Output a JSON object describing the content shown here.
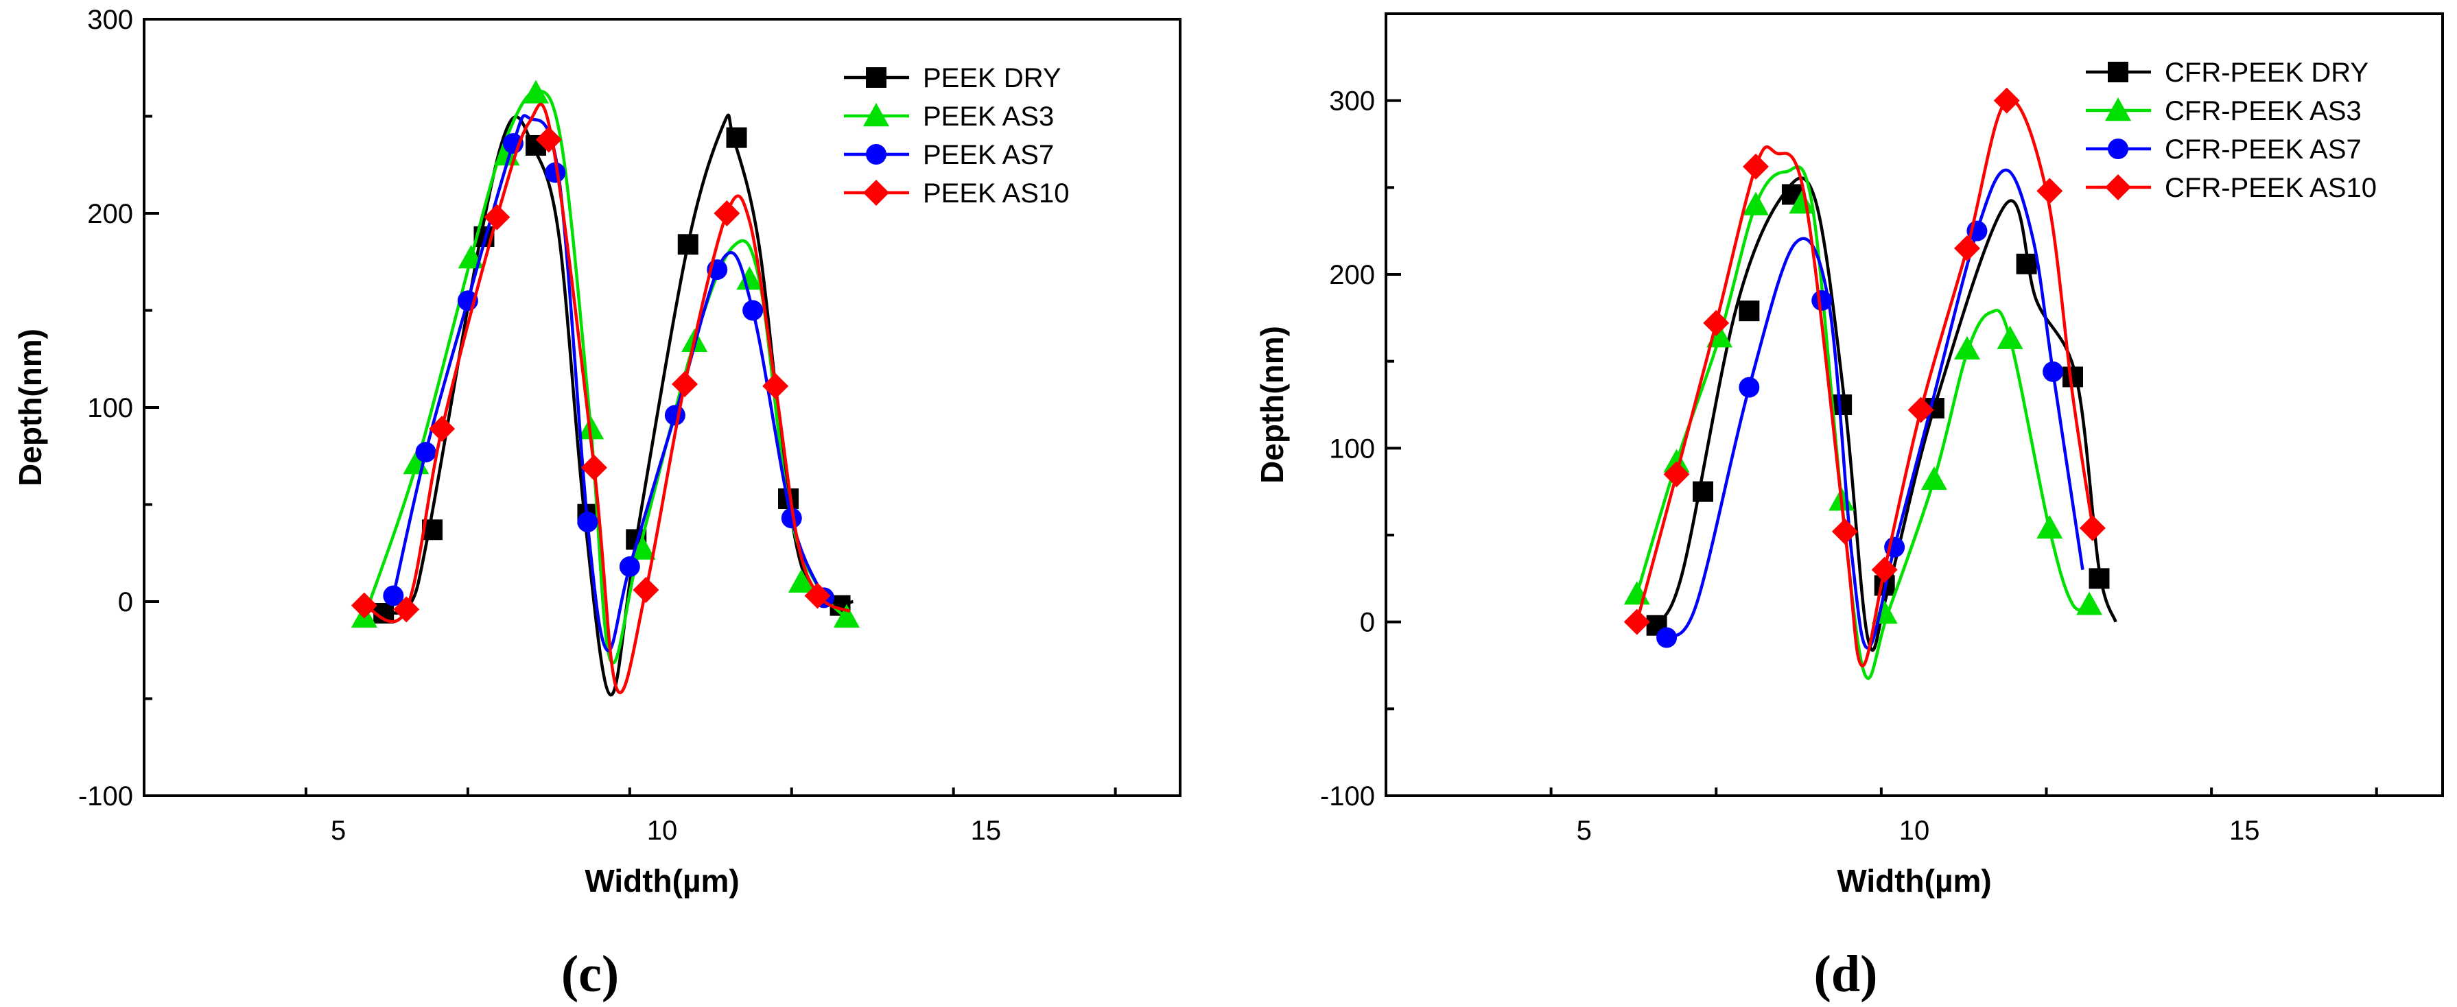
{
  "chart_data": [
    {
      "type": "line",
      "panel_label": "(c)",
      "xlabel": "Width(µm)",
      "ylabel": "Depth(nm)",
      "xlim": [
        2,
        18
      ],
      "ylim": [
        -100,
        300
      ],
      "xticks": [
        5,
        10,
        15
      ],
      "yticks": [
        -100,
        0,
        100,
        200,
        300
      ],
      "legend_position": "top-right",
      "series": [
        {
          "name": "PEEK DRY",
          "color": "#000000",
          "marker": "square",
          "x": [
            5.7,
            6.1,
            6.4,
            7.2,
            7.65,
            8.0,
            8.4,
            8.8,
            9.2,
            9.6,
            10.4,
            10.95,
            11.1,
            11.5,
            11.95,
            12.3,
            12.7,
            12.95
          ],
          "y": [
            -5,
            -2,
            37,
            188,
            247,
            235,
            190,
            45,
            -48,
            32,
            184,
            246,
            239,
            183,
            53,
            5,
            -1,
            0
          ],
          "markers": [
            [
              5.7,
              -6
            ],
            [
              6.45,
              37
            ],
            [
              7.25,
              188
            ],
            [
              8.05,
              235
            ],
            [
              8.85,
              45
            ],
            [
              9.6,
              32
            ],
            [
              10.4,
              184
            ],
            [
              11.15,
              239
            ],
            [
              11.95,
              53
            ],
            [
              12.75,
              -2
            ]
          ]
        },
        {
          "name": "PEEK AS3",
          "color": "#00e000",
          "marker": "triangle",
          "x": [
            5.4,
            6.2,
            7.05,
            7.55,
            8.05,
            8.45,
            8.9,
            9.2,
            9.65,
            10.5,
            11.1,
            11.5,
            11.95,
            12.4,
            12.9
          ],
          "y": [
            -8,
            70,
            177,
            235,
            263,
            235,
            89,
            -30,
            27,
            134,
            183,
            166,
            50,
            8,
            -10
          ],
          "markers": [
            [
              5.4,
              -8
            ],
            [
              6.2,
              71
            ],
            [
              7.05,
              177
            ],
            [
              7.6,
              230
            ],
            [
              8.05,
              262
            ],
            [
              8.9,
              89
            ],
            [
              9.7,
              27
            ],
            [
              10.5,
              134
            ],
            [
              11.35,
              166
            ],
            [
              12.15,
              10
            ],
            [
              12.85,
              -8
            ]
          ]
        },
        {
          "name": "PEEK AS7",
          "color": "#0000ff",
          "marker": "circle",
          "x": [
            5.85,
            6.35,
            7.0,
            7.7,
            7.95,
            8.4,
            8.85,
            9.15,
            9.5,
            10.2,
            10.95,
            11.4,
            12.0,
            12.5
          ],
          "y": [
            3,
            77,
            155,
            236,
            249,
            220,
            40,
            -25,
            18,
            96,
            177,
            150,
            43,
            2
          ],
          "markers": [
            [
              5.85,
              3
            ],
            [
              6.35,
              77
            ],
            [
              7.0,
              155
            ],
            [
              7.7,
              236
            ],
            [
              8.35,
              221
            ],
            [
              8.85,
              41
            ],
            [
              9.5,
              18
            ],
            [
              10.2,
              96
            ],
            [
              10.85,
              171
            ],
            [
              11.4,
              150
            ],
            [
              12.0,
              43
            ],
            [
              12.5,
              2
            ]
          ]
        },
        {
          "name": "PEEK AS10",
          "color": "#ff0000",
          "marker": "diamond",
          "x": [
            5.4,
            6.05,
            6.6,
            7.45,
            7.95,
            8.3,
            8.95,
            9.3,
            9.75,
            10.35,
            11.0,
            11.35,
            11.75,
            12.1,
            12.45,
            12.9
          ],
          "y": [
            -2,
            -4,
            89,
            198,
            247,
            238,
            69,
            -45,
            6,
            112,
            200,
            196,
            111,
            30,
            2,
            -5
          ],
          "markers": [
            [
              5.4,
              -2
            ],
            [
              6.05,
              -4
            ],
            [
              6.6,
              89
            ],
            [
              7.45,
              198
            ],
            [
              8.25,
              238
            ],
            [
              8.95,
              69
            ],
            [
              9.75,
              6
            ],
            [
              10.35,
              112
            ],
            [
              11.0,
              200
            ],
            [
              11.75,
              111
            ],
            [
              12.4,
              3
            ]
          ]
        }
      ]
    },
    {
      "type": "line",
      "panel_label": "(d)",
      "xlabel": "Width(µm)",
      "ylabel": "Depth(nm)",
      "xlim": [
        2,
        18
      ],
      "ylim": [
        -100,
        350
      ],
      "xticks": [
        5,
        10,
        15
      ],
      "yticks": [
        -100,
        0,
        100,
        200,
        300
      ],
      "legend_position": "top-right",
      "series": [
        {
          "name": "CFR-PEEK DRY",
          "color": "#000000",
          "marker": "square",
          "x": [
            6.1,
            6.5,
            7.3,
            8.0,
            8.5,
            8.95,
            9.3,
            9.6,
            10.3,
            11.4,
            11.85,
            12.45,
            12.8,
            13.05
          ],
          "y": [
            -2,
            30,
            180,
            245,
            243,
            125,
            -10,
            18,
            123,
            241,
            185,
            141,
            30,
            0
          ],
          "markers": [
            [
              6.1,
              -2
            ],
            [
              6.8,
              75
            ],
            [
              7.5,
              179
            ],
            [
              8.15,
              246
            ],
            [
              8.9,
              125
            ],
            [
              9.55,
              21
            ],
            [
              10.3,
              123
            ],
            [
              11.7,
              206
            ],
            [
              12.4,
              141
            ],
            [
              12.8,
              25
            ]
          ]
        },
        {
          "name": "CFR-PEEK AS3",
          "color": "#00e000",
          "marker": "triangle",
          "x": [
            5.8,
            6.4,
            7.05,
            7.6,
            8.05,
            8.45,
            8.9,
            9.25,
            9.6,
            10.3,
            10.8,
            11.15,
            11.45,
            12.05,
            12.4,
            12.7
          ],
          "y": [
            16,
            92,
            164,
            240,
            259,
            241,
            70,
            -30,
            5,
            82,
            155,
            178,
            163,
            53,
            10,
            10
          ],
          "markers": [
            [
              5.8,
              16
            ],
            [
              6.4,
              92
            ],
            [
              7.05,
              164
            ],
            [
              7.6,
              240
            ],
            [
              8.3,
              241
            ],
            [
              8.9,
              70
            ],
            [
              9.55,
              5
            ],
            [
              10.3,
              82
            ],
            [
              10.8,
              157
            ],
            [
              11.45,
              163
            ],
            [
              12.05,
              54
            ],
            [
              12.65,
              10
            ]
          ]
        },
        {
          "name": "CFR-PEEK AS7",
          "color": "#0000ff",
          "marker": "circle",
          "x": [
            6.25,
            6.7,
            7.5,
            8.2,
            8.7,
            9.05,
            9.3,
            9.7,
            10.25,
            10.95,
            11.4,
            11.8,
            12.1,
            12.55
          ],
          "y": [
            -9,
            10,
            135,
            218,
            185,
            40,
            -15,
            43,
            123,
            225,
            260,
            220,
            144,
            30
          ],
          "markers": [
            [
              6.25,
              -9
            ],
            [
              7.5,
              135
            ],
            [
              8.6,
              185
            ],
            [
              9.7,
              43
            ],
            [
              10.95,
              225
            ],
            [
              12.1,
              144
            ]
          ]
        },
        {
          "name": "CFR-PEEK AS10",
          "color": "#ff0000",
          "marker": "diamond",
          "x": [
            5.8,
            6.4,
            7.0,
            7.6,
            7.9,
            8.35,
            8.95,
            9.2,
            9.55,
            10.1,
            10.8,
            11.4,
            12.0,
            12.4,
            12.7
          ],
          "y": [
            0,
            85,
            172,
            262,
            270,
            243,
            52,
            -25,
            30,
            122,
            215,
            300,
            248,
            130,
            55
          ],
          "markers": [
            [
              5.8,
              0
            ],
            [
              6.4,
              85
            ],
            [
              7.0,
              172
            ],
            [
              7.6,
              262
            ],
            [
              8.95,
              52
            ],
            [
              9.55,
              30
            ],
            [
              10.1,
              122
            ],
            [
              10.8,
              215
            ],
            [
              11.4,
              300
            ],
            [
              12.05,
              248
            ],
            [
              12.7,
              54
            ]
          ]
        }
      ]
    }
  ]
}
